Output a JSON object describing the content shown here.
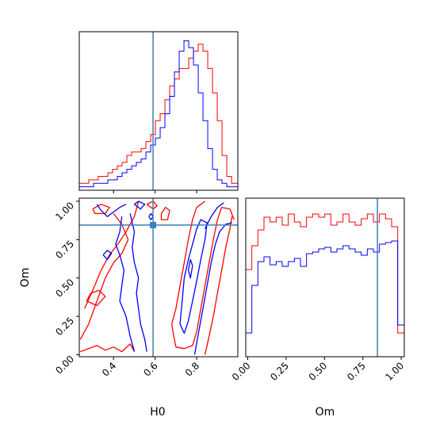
{
  "chart_data": {
    "type": "corner",
    "colors": {
      "series_a": "#ff0000",
      "series_b": "#0000ff",
      "truth": "#3a7fb5"
    },
    "parameters": [
      "H0",
      "Om"
    ],
    "truth": {
      "H0": 0.59,
      "Om": 0.845
    },
    "xlabels": {
      "H0": "H0",
      "Om": "Om"
    },
    "ylabel": "Om",
    "ranges": {
      "H0": [
        0.235,
        0.998
      ],
      "Om": [
        -0.013,
        1.02
      ]
    },
    "ticks": {
      "H0": {
        "values": [
          0.4,
          0.6,
          0.8
        ],
        "labels": [
          "0.4",
          "0.6",
          "0.8"
        ]
      },
      "Om": {
        "values": [
          0.0,
          0.25,
          0.5,
          0.75,
          1.0
        ],
        "labels": [
          "0.00",
          "0.25",
          "0.50",
          "0.75",
          "1.00"
        ]
      }
    },
    "hist_H0": {
      "edges": [
        0.235,
        0.2579,
        0.2808,
        0.3037,
        0.3266,
        0.3495,
        0.3724,
        0.3953,
        0.4182,
        0.4411,
        0.464,
        0.4869,
        0.5098,
        0.5327,
        0.5556,
        0.5785,
        0.6014,
        0.6243,
        0.6472,
        0.6701,
        0.693,
        0.7159,
        0.7388,
        0.7617,
        0.7846,
        0.8075,
        0.8304,
        0.8533,
        0.8762,
        0.8991,
        0.922,
        0.9449,
        0.9678,
        0.998
      ],
      "series": [
        {
          "color_key": "series_a",
          "values": [
            2,
            2,
            3,
            3,
            4,
            4,
            5,
            6,
            7,
            8,
            10,
            11,
            11,
            12,
            14,
            16,
            20,
            22,
            26,
            30,
            32,
            35,
            35,
            38,
            40,
            42,
            40,
            35,
            28,
            20,
            10,
            4,
            2
          ]
        },
        {
          "color_key": "series_b",
          "values": [
            1,
            1,
            1,
            2,
            2,
            2,
            3,
            3,
            4,
            5,
            6,
            7,
            8,
            9,
            11,
            13,
            15,
            18,
            22,
            27,
            34,
            40,
            43,
            41,
            36,
            28,
            20,
            12,
            6,
            3,
            2,
            1,
            1
          ]
        }
      ]
    },
    "hist_Om": {
      "edges": [
        -0.013,
        0.0266,
        0.0662,
        0.1058,
        0.1454,
        0.185,
        0.2246,
        0.2642,
        0.3038,
        0.3434,
        0.383,
        0.4226,
        0.4622,
        0.5018,
        0.5414,
        0.581,
        0.6206,
        0.6602,
        0.6998,
        0.7394,
        0.779,
        0.8186,
        0.8582,
        0.8978,
        0.9374,
        0.977,
        1.02
      ],
      "series": [
        {
          "color_key": "series_a",
          "values": [
            0.55,
            0.7,
            0.8,
            0.88,
            0.85,
            0.88,
            0.83,
            0.9,
            0.85,
            0.82,
            0.88,
            0.9,
            0.88,
            0.9,
            0.83,
            0.85,
            0.9,
            0.85,
            0.83,
            0.87,
            0.9,
            0.85,
            0.9,
            0.87,
            0.82,
            0.15
          ]
        },
        {
          "color_key": "series_b",
          "values": [
            0.15,
            0.45,
            0.6,
            0.63,
            0.58,
            0.6,
            0.57,
            0.6,
            0.62,
            0.57,
            0.65,
            0.66,
            0.68,
            0.69,
            0.66,
            0.68,
            0.7,
            0.68,
            0.66,
            0.64,
            0.68,
            0.66,
            0.71,
            0.72,
            0.73,
            0.2
          ]
        }
      ]
    },
    "contours": [
      {
        "color_key": "series_a",
        "points": [
          [
            0.24,
            0.1
          ],
          [
            0.28,
            0.2
          ],
          [
            0.32,
            0.35
          ],
          [
            0.36,
            0.5
          ],
          [
            0.4,
            0.6
          ],
          [
            0.44,
            0.66
          ],
          [
            0.47,
            0.75
          ],
          [
            0.44,
            0.85
          ],
          [
            0.4,
            0.92
          ]
        ]
      },
      {
        "color_key": "series_a",
        "points": [
          [
            0.26,
            0.3
          ],
          [
            0.3,
            0.42
          ],
          [
            0.34,
            0.55
          ],
          [
            0.38,
            0.65
          ],
          [
            0.42,
            0.72
          ],
          [
            0.46,
            0.8
          ],
          [
            0.5,
            0.9
          ],
          [
            0.52,
            1.0
          ]
        ]
      },
      {
        "color_key": "series_a",
        "points": [
          [
            0.24,
            0.02
          ],
          [
            0.28,
            0.04
          ],
          [
            0.32,
            0.06
          ],
          [
            0.36,
            0.03
          ],
          [
            0.4,
            0.05
          ],
          [
            0.44,
            0.02
          ],
          [
            0.48,
            0.07
          ],
          [
            0.5,
            0.02
          ]
        ]
      },
      {
        "color_key": "series_a",
        "points": [
          [
            0.27,
            0.35
          ],
          [
            0.32,
            0.32
          ],
          [
            0.36,
            0.38
          ],
          [
            0.33,
            0.42
          ],
          [
            0.29,
            0.4
          ],
          [
            0.27,
            0.35
          ]
        ]
      },
      {
        "color_key": "series_a",
        "points": [
          [
            0.3,
            0.95
          ],
          [
            0.34,
            0.98
          ],
          [
            0.38,
            0.96
          ],
          [
            0.36,
            0.92
          ],
          [
            0.31,
            0.92
          ],
          [
            0.3,
            0.95
          ]
        ]
      },
      {
        "color_key": "series_a",
        "points": [
          [
            0.56,
            0.98
          ],
          [
            0.59,
            1.0
          ],
          [
            0.61,
            0.97
          ],
          [
            0.59,
            0.95
          ],
          [
            0.56,
            0.98
          ]
        ]
      },
      {
        "color_key": "series_a",
        "points": [
          [
            0.63,
            0.92
          ],
          [
            0.65,
            0.96
          ],
          [
            0.67,
            0.94
          ],
          [
            0.66,
            0.88
          ],
          [
            0.63,
            0.88
          ],
          [
            0.63,
            0.92
          ]
        ]
      },
      {
        "color_key": "series_a",
        "points": [
          [
            0.68,
            0.2
          ],
          [
            0.69,
            0.12
          ],
          [
            0.7,
            0.05
          ],
          [
            0.74,
            0.04
          ],
          [
            0.78,
            0.06
          ],
          [
            0.8,
            0.15
          ],
          [
            0.82,
            0.3
          ],
          [
            0.84,
            0.45
          ],
          [
            0.86,
            0.6
          ],
          [
            0.88,
            0.75
          ],
          [
            0.9,
            0.88
          ],
          [
            0.92,
            0.96
          ],
          [
            0.96,
            0.95
          ],
          [
            0.98,
            0.88
          ]
        ]
      },
      {
        "color_key": "series_a",
        "points": [
          [
            0.68,
            0.2
          ],
          [
            0.7,
            0.3
          ],
          [
            0.72,
            0.45
          ],
          [
            0.74,
            0.6
          ],
          [
            0.76,
            0.75
          ],
          [
            0.78,
            0.88
          ],
          [
            0.8,
            0.96
          ],
          [
            0.84,
            1.0
          ]
        ]
      },
      {
        "color_key": "series_a",
        "points": [
          [
            0.84,
            0.0
          ],
          [
            0.86,
            0.12
          ],
          [
            0.88,
            0.25
          ],
          [
            0.9,
            0.4
          ],
          [
            0.92,
            0.55
          ],
          [
            0.94,
            0.7
          ],
          [
            0.96,
            0.82
          ],
          [
            0.97,
            0.9
          ]
        ]
      },
      {
        "color_key": "series_b",
        "points": [
          [
            0.32,
            0.98
          ],
          [
            0.34,
            0.94
          ],
          [
            0.37,
            0.9
          ],
          [
            0.4,
            0.93
          ],
          [
            0.43,
            0.96
          ],
          [
            0.46,
            0.98
          ]
        ]
      },
      {
        "color_key": "series_b",
        "points": [
          [
            0.44,
            0.9
          ],
          [
            0.43,
            0.8
          ],
          [
            0.41,
            0.72
          ],
          [
            0.43,
            0.65
          ],
          [
            0.45,
            0.55
          ],
          [
            0.44,
            0.45
          ],
          [
            0.43,
            0.35
          ],
          [
            0.46,
            0.25
          ],
          [
            0.48,
            0.12
          ],
          [
            0.5,
            0.02
          ]
        ]
      },
      {
        "color_key": "series_b",
        "points": [
          [
            0.48,
            0.92
          ],
          [
            0.5,
            0.8
          ],
          [
            0.49,
            0.7
          ],
          [
            0.5,
            0.6
          ],
          [
            0.52,
            0.5
          ],
          [
            0.51,
            0.4
          ],
          [
            0.52,
            0.3
          ],
          [
            0.53,
            0.2
          ],
          [
            0.55,
            0.1
          ],
          [
            0.56,
            0.02
          ]
        ]
      },
      {
        "color_key": "series_b",
        "points": [
          [
            0.35,
            0.65
          ],
          [
            0.37,
            0.68
          ],
          [
            0.39,
            0.66
          ],
          [
            0.37,
            0.62
          ],
          [
            0.35,
            0.65
          ]
        ]
      },
      {
        "color_key": "series_b",
        "points": [
          [
            0.5,
            0.98
          ],
          [
            0.52,
            1.0
          ],
          [
            0.55,
            0.98
          ],
          [
            0.53,
            0.95
          ],
          [
            0.5,
            0.98
          ]
        ]
      },
      {
        "color_key": "series_b",
        "points": [
          [
            0.57,
            0.9
          ],
          [
            0.58,
            0.92
          ],
          [
            0.59,
            0.9
          ],
          [
            0.58,
            0.88
          ],
          [
            0.57,
            0.9
          ]
        ]
      },
      {
        "color_key": "series_b",
        "points": [
          [
            0.72,
            0.2
          ],
          [
            0.73,
            0.35
          ],
          [
            0.74,
            0.5
          ],
          [
            0.76,
            0.62
          ],
          [
            0.78,
            0.72
          ],
          [
            0.8,
            0.82
          ],
          [
            0.82,
            0.88
          ],
          [
            0.85,
            0.86
          ],
          [
            0.84,
            0.75
          ],
          [
            0.82,
            0.62
          ],
          [
            0.8,
            0.48
          ],
          [
            0.78,
            0.35
          ],
          [
            0.76,
            0.22
          ],
          [
            0.74,
            0.14
          ],
          [
            0.72,
            0.2
          ]
        ]
      },
      {
        "color_key": "series_b",
        "points": [
          [
            0.76,
            0.55
          ],
          [
            0.77,
            0.62
          ],
          [
            0.78,
            0.58
          ],
          [
            0.77,
            0.5
          ],
          [
            0.76,
            0.55
          ]
        ]
      },
      {
        "color_key": "series_b",
        "points": [
          [
            0.79,
            0.0
          ],
          [
            0.81,
            0.15
          ],
          [
            0.83,
            0.3
          ],
          [
            0.85,
            0.45
          ],
          [
            0.87,
            0.6
          ],
          [
            0.89,
            0.72
          ],
          [
            0.91,
            0.8
          ],
          [
            0.94,
            0.85
          ],
          [
            0.97,
            0.86
          ]
        ]
      },
      {
        "color_key": "series_b",
        "points": [
          [
            0.84,
            0.82
          ],
          [
            0.87,
            0.9
          ],
          [
            0.9,
            0.96
          ],
          [
            0.93,
            0.99
          ]
        ]
      }
    ]
  }
}
